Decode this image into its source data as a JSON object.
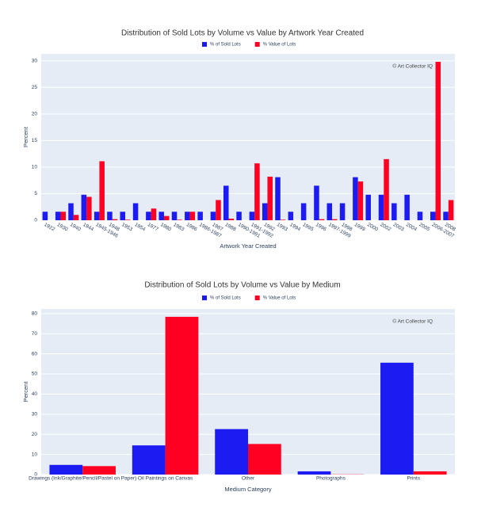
{
  "chart_data": [
    {
      "type": "bar",
      "title": "Distribution of Sold Lots by Volume vs Value by Artwork Year Created",
      "x_label": "Artwork Year Created",
      "y_label": "Percent",
      "annotation": "© Art Collector IQ",
      "categories": [
        "1922",
        "1930",
        "1940",
        "1944",
        "1945-1946",
        "1948",
        "1953",
        "1954",
        "1977",
        "1980",
        "1983",
        "1986",
        "1986-1987",
        "1987",
        "1988",
        "1990-1991",
        "1991-1992",
        "1992",
        "1993",
        "1994",
        "1995",
        "1996",
        "1997-1999",
        "1998",
        "1999",
        "2000",
        "2002",
        "2003",
        "2004",
        "2005",
        "2006-2007",
        "2008"
      ],
      "series": [
        {
          "name": "% of Sold Lots",
          "color": "#1c1cf2",
          "values": [
            1.6,
            1.6,
            3.2,
            4.8,
            1.6,
            1.6,
            1.6,
            3.2,
            1.6,
            1.6,
            1.6,
            1.6,
            1.6,
            1.6,
            6.5,
            1.6,
            1.6,
            3.2,
            8.1,
            1.6,
            3.2,
            6.5,
            3.2,
            3.2,
            8.1,
            4.8,
            4.8,
            3.2,
            4.8,
            1.6,
            1.6,
            1.6
          ]
        },
        {
          "name": "% Value of Lots",
          "color": "#ff0022",
          "values": [
            0,
            1.6,
            1.0,
            4.4,
            11.1,
            0.2,
            0.1,
            0,
            2.2,
            0.8,
            0.1,
            1.6,
            0,
            3.8,
            0.3,
            0,
            10.7,
            8.2,
            0.1,
            0,
            0,
            0.2,
            0.2,
            0,
            7.3,
            0,
            11.5,
            0,
            0,
            0,
            29.8,
            3.8
          ]
        }
      ],
      "ylim": [
        0,
        31.3
      ],
      "yticks": [
        0,
        5,
        10,
        15,
        20,
        25,
        30
      ],
      "grid": true
    },
    {
      "type": "bar",
      "title": "Distribution of Sold Lots by Volume vs Value by Medium",
      "x_label": "Medium Category",
      "y_label": "Percent",
      "annotation": "© Art Collector IQ",
      "categories": [
        "Drawings (Ink/Graphite/Pencil/Pastel on Paper)",
        "Oil Paintings on Canvas",
        "Other",
        "Photographs",
        "Prints"
      ],
      "series": [
        {
          "name": "% of Sold Lots",
          "color": "#1c1cf2",
          "values": [
            4.8,
            14.5,
            22.6,
            1.6,
            55.6
          ]
        },
        {
          "name": "% Value of Lots",
          "color": "#ff0022",
          "values": [
            4.2,
            78.4,
            15.2,
            0.1,
            1.6
          ]
        }
      ],
      "ylim": [
        0,
        82.3
      ],
      "yticks": [
        0,
        10,
        20,
        30,
        40,
        50,
        60,
        70,
        80
      ],
      "grid": true
    }
  ]
}
